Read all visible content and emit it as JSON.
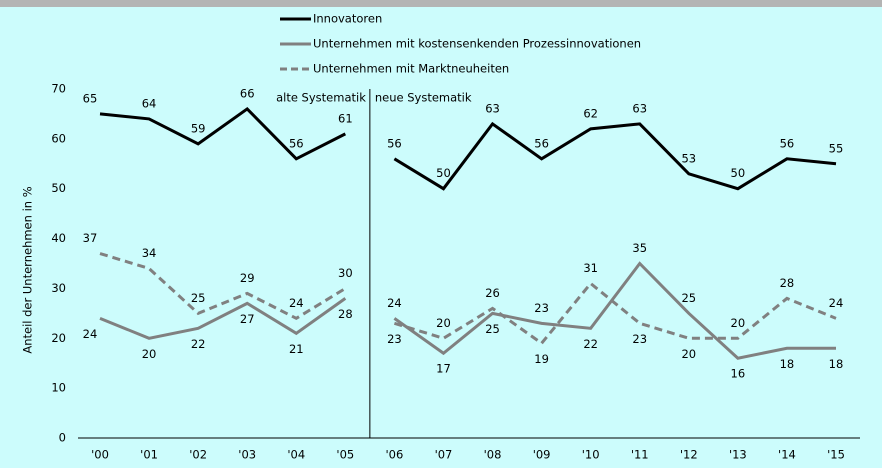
{
  "chart_data": {
    "type": "line",
    "ylabel": "Anteil der Unternehmen in %",
    "categories": [
      "'00",
      "'01",
      "'02",
      "'03",
      "'04",
      "'05",
      "'06",
      "'07",
      "'08",
      "'09",
      "'10",
      "'11",
      "'12",
      "'13",
      "'14",
      "'15"
    ],
    "series": [
      {
        "name": "Innovatoren",
        "color": "#000000",
        "dash": false,
        "values": [
          65,
          64,
          59,
          66,
          56,
          61,
          56,
          50,
          63,
          56,
          62,
          63,
          53,
          50,
          56,
          55
        ]
      },
      {
        "name": "Unternehmen mit kostensenkenden Prozessinnovationen",
        "color": "#808080",
        "dash": false,
        "values": [
          24,
          20,
          22,
          27,
          21,
          28,
          24,
          17,
          25,
          23,
          22,
          35,
          25,
          16,
          18,
          18
        ]
      },
      {
        "name": "Unternehmen mit Marktneuheiten",
        "color": "#808080",
        "dash": true,
        "values": [
          37,
          34,
          25,
          29,
          24,
          30,
          23,
          20,
          26,
          19,
          31,
          23,
          20,
          20,
          28,
          24
        ]
      }
    ],
    "divider": {
      "after": "'05",
      "left_label": "alte Systematik",
      "right_label": "neue Systematik"
    },
    "ylim": [
      0,
      70
    ],
    "yticks": [
      0,
      10,
      20,
      30,
      40,
      50,
      60,
      70
    ],
    "grid": false
  }
}
